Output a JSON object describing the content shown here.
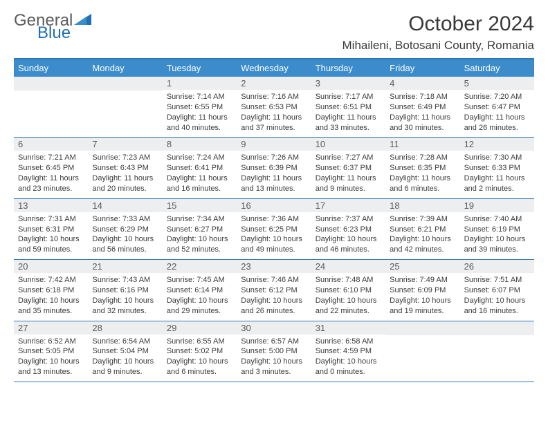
{
  "brand": {
    "part1": "General",
    "part2": "Blue"
  },
  "colors": {
    "header_bg": "#3c8ccc",
    "rule": "#2f77b5",
    "numrow_bg": "#eceeef",
    "text": "#3a3a3a",
    "logo_blue": "#1f6fb2",
    "logo_gray": "#5c5c5c"
  },
  "title": "October 2024",
  "location": "Mihaileni, Botosani County, Romania",
  "day_names": [
    "Sunday",
    "Monday",
    "Tuesday",
    "Wednesday",
    "Thursday",
    "Friday",
    "Saturday"
  ],
  "weeks": [
    [
      {
        "n": "",
        "sr": "",
        "ss": "",
        "dl": ""
      },
      {
        "n": "",
        "sr": "",
        "ss": "",
        "dl": ""
      },
      {
        "n": "1",
        "sr": "Sunrise: 7:14 AM",
        "ss": "Sunset: 6:55 PM",
        "dl": "Daylight: 11 hours and 40 minutes."
      },
      {
        "n": "2",
        "sr": "Sunrise: 7:16 AM",
        "ss": "Sunset: 6:53 PM",
        "dl": "Daylight: 11 hours and 37 minutes."
      },
      {
        "n": "3",
        "sr": "Sunrise: 7:17 AM",
        "ss": "Sunset: 6:51 PM",
        "dl": "Daylight: 11 hours and 33 minutes."
      },
      {
        "n": "4",
        "sr": "Sunrise: 7:18 AM",
        "ss": "Sunset: 6:49 PM",
        "dl": "Daylight: 11 hours and 30 minutes."
      },
      {
        "n": "5",
        "sr": "Sunrise: 7:20 AM",
        "ss": "Sunset: 6:47 PM",
        "dl": "Daylight: 11 hours and 26 minutes."
      }
    ],
    [
      {
        "n": "6",
        "sr": "Sunrise: 7:21 AM",
        "ss": "Sunset: 6:45 PM",
        "dl": "Daylight: 11 hours and 23 minutes."
      },
      {
        "n": "7",
        "sr": "Sunrise: 7:23 AM",
        "ss": "Sunset: 6:43 PM",
        "dl": "Daylight: 11 hours and 20 minutes."
      },
      {
        "n": "8",
        "sr": "Sunrise: 7:24 AM",
        "ss": "Sunset: 6:41 PM",
        "dl": "Daylight: 11 hours and 16 minutes."
      },
      {
        "n": "9",
        "sr": "Sunrise: 7:26 AM",
        "ss": "Sunset: 6:39 PM",
        "dl": "Daylight: 11 hours and 13 minutes."
      },
      {
        "n": "10",
        "sr": "Sunrise: 7:27 AM",
        "ss": "Sunset: 6:37 PM",
        "dl": "Daylight: 11 hours and 9 minutes."
      },
      {
        "n": "11",
        "sr": "Sunrise: 7:28 AM",
        "ss": "Sunset: 6:35 PM",
        "dl": "Daylight: 11 hours and 6 minutes."
      },
      {
        "n": "12",
        "sr": "Sunrise: 7:30 AM",
        "ss": "Sunset: 6:33 PM",
        "dl": "Daylight: 11 hours and 2 minutes."
      }
    ],
    [
      {
        "n": "13",
        "sr": "Sunrise: 7:31 AM",
        "ss": "Sunset: 6:31 PM",
        "dl": "Daylight: 10 hours and 59 minutes."
      },
      {
        "n": "14",
        "sr": "Sunrise: 7:33 AM",
        "ss": "Sunset: 6:29 PM",
        "dl": "Daylight: 10 hours and 56 minutes."
      },
      {
        "n": "15",
        "sr": "Sunrise: 7:34 AM",
        "ss": "Sunset: 6:27 PM",
        "dl": "Daylight: 10 hours and 52 minutes."
      },
      {
        "n": "16",
        "sr": "Sunrise: 7:36 AM",
        "ss": "Sunset: 6:25 PM",
        "dl": "Daylight: 10 hours and 49 minutes."
      },
      {
        "n": "17",
        "sr": "Sunrise: 7:37 AM",
        "ss": "Sunset: 6:23 PM",
        "dl": "Daylight: 10 hours and 46 minutes."
      },
      {
        "n": "18",
        "sr": "Sunrise: 7:39 AM",
        "ss": "Sunset: 6:21 PM",
        "dl": "Daylight: 10 hours and 42 minutes."
      },
      {
        "n": "19",
        "sr": "Sunrise: 7:40 AM",
        "ss": "Sunset: 6:19 PM",
        "dl": "Daylight: 10 hours and 39 minutes."
      }
    ],
    [
      {
        "n": "20",
        "sr": "Sunrise: 7:42 AM",
        "ss": "Sunset: 6:18 PM",
        "dl": "Daylight: 10 hours and 35 minutes."
      },
      {
        "n": "21",
        "sr": "Sunrise: 7:43 AM",
        "ss": "Sunset: 6:16 PM",
        "dl": "Daylight: 10 hours and 32 minutes."
      },
      {
        "n": "22",
        "sr": "Sunrise: 7:45 AM",
        "ss": "Sunset: 6:14 PM",
        "dl": "Daylight: 10 hours and 29 minutes."
      },
      {
        "n": "23",
        "sr": "Sunrise: 7:46 AM",
        "ss": "Sunset: 6:12 PM",
        "dl": "Daylight: 10 hours and 26 minutes."
      },
      {
        "n": "24",
        "sr": "Sunrise: 7:48 AM",
        "ss": "Sunset: 6:10 PM",
        "dl": "Daylight: 10 hours and 22 minutes."
      },
      {
        "n": "25",
        "sr": "Sunrise: 7:49 AM",
        "ss": "Sunset: 6:09 PM",
        "dl": "Daylight: 10 hours and 19 minutes."
      },
      {
        "n": "26",
        "sr": "Sunrise: 7:51 AM",
        "ss": "Sunset: 6:07 PM",
        "dl": "Daylight: 10 hours and 16 minutes."
      }
    ],
    [
      {
        "n": "27",
        "sr": "Sunrise: 6:52 AM",
        "ss": "Sunset: 5:05 PM",
        "dl": "Daylight: 10 hours and 13 minutes."
      },
      {
        "n": "28",
        "sr": "Sunrise: 6:54 AM",
        "ss": "Sunset: 5:04 PM",
        "dl": "Daylight: 10 hours and 9 minutes."
      },
      {
        "n": "29",
        "sr": "Sunrise: 6:55 AM",
        "ss": "Sunset: 5:02 PM",
        "dl": "Daylight: 10 hours and 6 minutes."
      },
      {
        "n": "30",
        "sr": "Sunrise: 6:57 AM",
        "ss": "Sunset: 5:00 PM",
        "dl": "Daylight: 10 hours and 3 minutes."
      },
      {
        "n": "31",
        "sr": "Sunrise: 6:58 AM",
        "ss": "Sunset: 4:59 PM",
        "dl": "Daylight: 10 hours and 0 minutes."
      },
      {
        "n": "",
        "sr": "",
        "ss": "",
        "dl": ""
      },
      {
        "n": "",
        "sr": "",
        "ss": "",
        "dl": ""
      }
    ]
  ]
}
